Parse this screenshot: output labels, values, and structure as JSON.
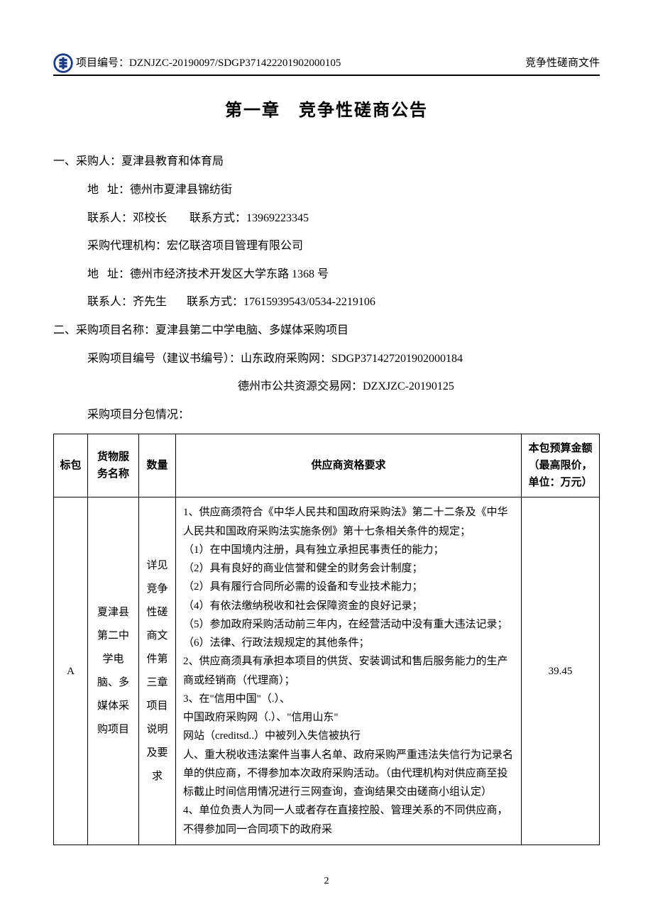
{
  "header": {
    "project_no_label": "项目编号：",
    "project_no": "DZNJZC-20190097/SDGP371422201902000105",
    "doc_type": "竞争性磋商文件"
  },
  "chapter_title": "第一章　竞争性磋商公告",
  "section1": {
    "label": "一、采购人：",
    "purchaser": "夏津县教育和体育局",
    "addr_label": "地",
    "addr_label2": "址：",
    "addr": "德州市夏津县锦纺街",
    "contact_label": "联系人：",
    "contact": "邓校长",
    "phone_label": "联系方式：",
    "phone": "13969223345",
    "agency_label": "采购代理机构：",
    "agency": "宏亿联咨项目管理有限公司",
    "agency_addr": "德州市经济技术开发区大学东路 1368 号",
    "agency_contact": "齐先生",
    "agency_phone": "17615939543/0534-2219106"
  },
  "section2": {
    "label": "二、采购项目名称：",
    "project_name": "夏津县第二中学电脑、多媒体采购项目",
    "proj_no_label": "采购项目编号（建议书编号）：",
    "sdgov_label": "山东政府采购网：",
    "sdgov_no": "SDGP371427201902000184",
    "dzpub_label": "德州市公共资源交易网：",
    "dzpub_no": "DZXJZC-20190125",
    "subpkg_label": "采购项目分包情况："
  },
  "table": {
    "headers": {
      "pkg": "标包",
      "name": "货物服务名称",
      "qty": "数量",
      "req": "供应商资格要求",
      "budget": "本包预算金额（最高限价，单位：万元）"
    },
    "row": {
      "pkg": "A",
      "name": "夏津县第二中学电脑、多媒体采购项目",
      "qty": "详见竞争性磋商文件第三章项目说明及要求",
      "req_lines": [
        "1、供应商须符合《中华人民共和国政府采购法》第二十二条及《中华人民共和国政府采购法实施条例》第十七条相关条件的规定；",
        "（1）在中国境内注册，具有独立承担民事责任的能力；",
        "（2）具有良好的商业信誉和健全的财务会计制度；",
        "（2）具有履行合同所必需的设备和专业技术能力；",
        "（4）有依法缴纳税收和社会保障资金的良好记录；",
        "（5）参加政府采购活动前三年内，在经营活动中没有重大违法记录；",
        "（6）法律、行政法规规定的其他条件；",
        "2、供应商须具有承担本项目的供货、安装调试和售后服务能力的生产商或经销商（代理商）；",
        "3、在\"信用中国\"（.）、",
        "中国政府采购网（.）、\"信用山东\"",
        "网站（creditsd..）中被列入失信被执行",
        "人、重大税收违法案件当事人名单、政府采购严重违法失信行为记录名单的供应商，不得参加本次政府采购活动。（由代理机构对供应商至投标截止时间信用情况进行三网查询，查询结果交由磋商小组认定）",
        "4、单位负责人为同一人或者存在直接控股、管理关系的不同供应商，不得参加同一合同项下的政府采"
      ],
      "budget": "39.45"
    }
  },
  "page_number": "2"
}
